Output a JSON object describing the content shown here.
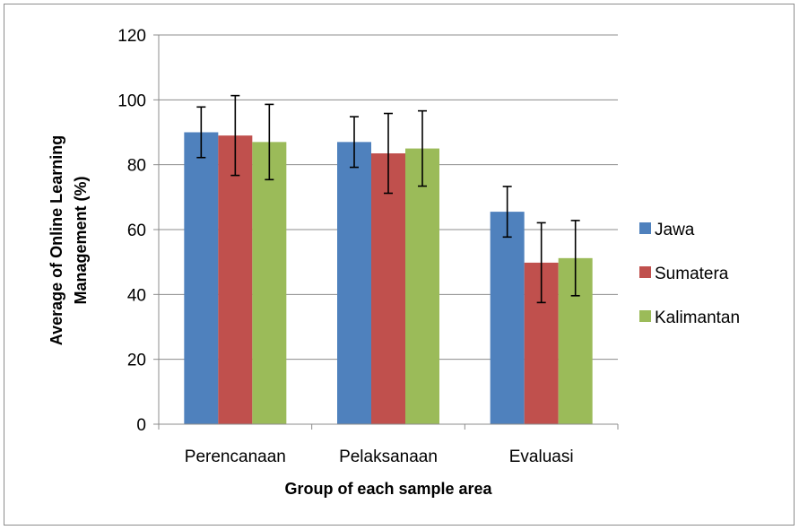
{
  "chart_data": {
    "type": "bar",
    "categories": [
      "Perencanaan",
      "Pelaksanaan",
      "Evaluasi"
    ],
    "series": [
      {
        "name": "Jawa",
        "color": "#4F81BD",
        "values": [
          90,
          87,
          65.5
        ],
        "error": [
          7.8,
          7.8,
          7.8
        ]
      },
      {
        "name": "Sumatera",
        "color": "#C0504D",
        "values": [
          89,
          83.5,
          49.8
        ],
        "error": [
          12.3,
          12.3,
          12.3
        ]
      },
      {
        "name": "Kalimantan",
        "color": "#9BBB59",
        "values": [
          87,
          85,
          51.2
        ],
        "error": [
          11.6,
          11.6,
          11.6
        ]
      }
    ],
    "xlabel": "Group of each sample area",
    "ylabel": [
      "Average of Online Learning",
      "Management (%)"
    ],
    "ylim": [
      0,
      120
    ],
    "yticks": [
      0,
      20,
      40,
      60,
      80,
      100,
      120
    ],
    "grid": true,
    "legend_position": "right"
  }
}
